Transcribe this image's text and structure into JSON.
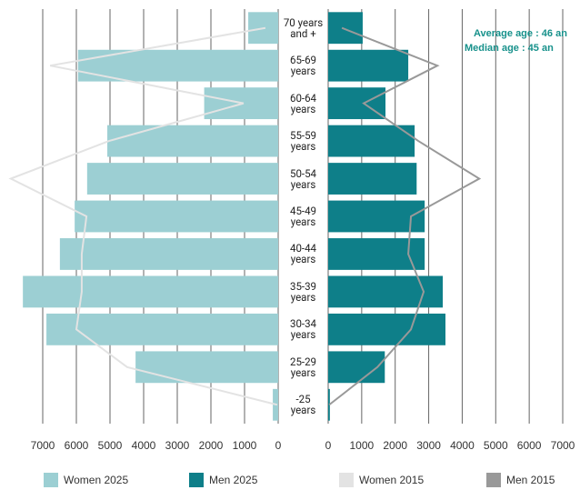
{
  "chart_data": {
    "type": "pyramid",
    "categories": [
      "70 years\nand +",
      "65-69\nyears",
      "60-64\nyears",
      "55-59\nyears",
      "50-54\nyears",
      "45-49\nyears",
      "40-44\nyears",
      "35-39\nyears",
      "30-34\nyears",
      "25-29\nyears",
      "-25\nyears"
    ],
    "xlim": [
      0,
      7000
    ],
    "xticks": [
      7000,
      6000,
      5000,
      4000,
      3000,
      2000,
      1000,
      0
    ],
    "x2lim": [
      0,
      7000
    ],
    "x2ticks": [
      0,
      1000,
      2000,
      3000,
      4000,
      5000,
      6000,
      7000
    ],
    "grid": true,
    "annotations": [
      "Average age : 46 an",
      "Median age : 45 an"
    ],
    "annotation_color": "#17918b",
    "series": [
      {
        "name": "Women 2025",
        "color": "#9ccfd3",
        "mark": "bar",
        "axis": "x",
        "values": [
          890,
          5950,
          2200,
          5080,
          5680,
          6050,
          6490,
          7590,
          6890,
          4240,
          160
        ]
      },
      {
        "name": "Men 2025",
        "color": "#0e7f89",
        "mark": "bar",
        "axis": "x2",
        "values": [
          1030,
          2390,
          1710,
          2580,
          2640,
          2880,
          2880,
          3420,
          3500,
          1690,
          50
        ]
      },
      {
        "name": "Women 2015",
        "color": "#e3e3e3",
        "mark": "line",
        "axis": "x",
        "values": [
          380,
          6780,
          1030,
          5030,
          7950,
          5700,
          5840,
          5840,
          6000,
          4490,
          30
        ]
      },
      {
        "name": "Men 2015",
        "color": "#999999",
        "mark": "line",
        "axis": "x2",
        "values": [
          410,
          3260,
          1060,
          2690,
          4510,
          2470,
          2390,
          2850,
          2470,
          1470,
          30
        ]
      }
    ]
  }
}
